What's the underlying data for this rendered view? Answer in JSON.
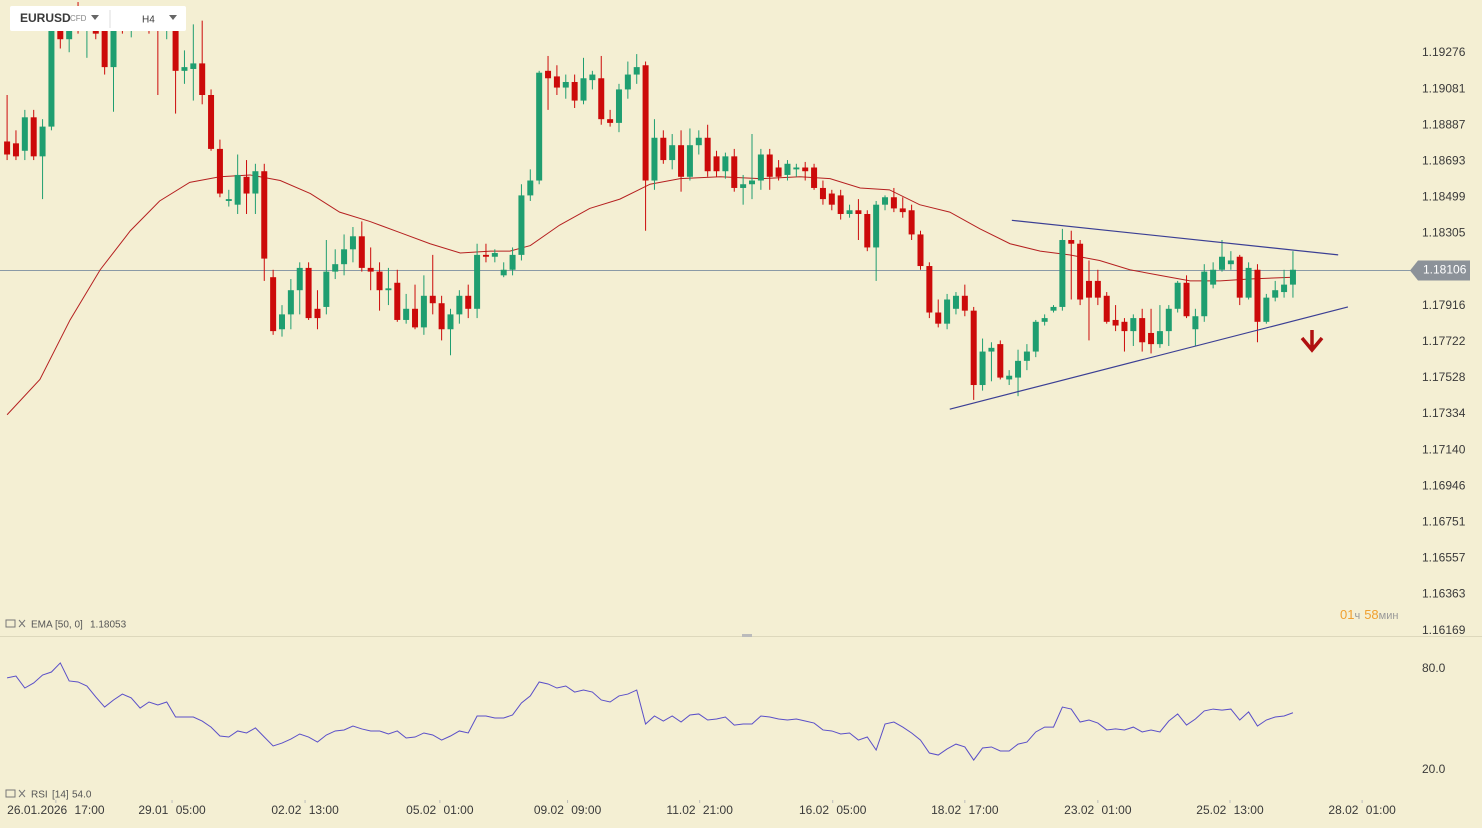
{
  "header": {
    "symbol": "EURUSD",
    "type": "CFD",
    "timeframe": "H4"
  },
  "chart_data": [
    {
      "type": "candlestick",
      "xlim": [
        -0.8,
        158.2
      ],
      "ylim": [
        1.1614,
        1.19561
      ],
      "yticks": [
        1.19276,
        1.19081,
        1.18887,
        1.18693,
        1.18499,
        1.18305,
        1.17916,
        1.17722,
        1.17528,
        1.17334,
        {
          "value": 1.1714,
          "label": "1.17140"
        },
        1.16946,
        1.16751,
        1.16557,
        1.16363,
        1.16169
      ],
      "xticks": [
        {
          "value": 5.5,
          "label": "26.01.2026 17:00"
        },
        {
          "value": 18.6,
          "label": "29.01 05:00"
        },
        {
          "value": 33.6,
          "label": "02.02 13:00"
        },
        {
          "value": 48.8,
          "label": "05.02 01:00"
        },
        {
          "value": 63.2,
          "label": "09.02 09:00"
        },
        {
          "value": 78.1,
          "label": "11.02 21:00"
        },
        {
          "value": 93.1,
          "label": "16.02 05:00"
        },
        {
          "value": 108,
          "label": "18.02 17:00"
        },
        {
          "value": 123,
          "label": "23.02 01:00"
        },
        {
          "value": 137.9,
          "label": "25.02 13:00"
        },
        {
          "value": 152.8,
          "label": "28.02 01:00"
        }
      ],
      "up_color": "#1f9e70",
      "down_color": "#cc0a0a",
      "ohlc": [
        [
          1.188,
          1.1905,
          1.187,
          1.1873
        ],
        [
          1.1879,
          1.1886,
          1.187,
          1.1872
        ],
        [
          1.1875,
          1.1897,
          1.187,
          1.1893
        ],
        [
          1.1893,
          1.1897,
          1.187,
          1.1872
        ],
        [
          1.1872,
          1.1892,
          1.1849,
          1.1888
        ],
        [
          1.1888,
          1.1948,
          1.1886,
          1.1945
        ],
        [
          1.1945,
          1.1952,
          1.193,
          1.1935
        ],
        [
          1.1935,
          1.195,
          1.1928,
          1.1946
        ],
        [
          1.1946,
          1.1955,
          1.1938,
          1.194
        ],
        [
          1.194,
          1.1948,
          1.1925,
          1.1944
        ],
        [
          1.1944,
          1.195,
          1.1935,
          1.1938
        ],
        [
          1.1943,
          1.1948,
          1.1916,
          1.192
        ],
        [
          1.192,
          1.1948,
          1.1896,
          1.1945
        ],
        [
          1.1945,
          1.195,
          1.1938,
          1.1942
        ],
        [
          1.1942,
          1.1952,
          1.1936,
          1.1947
        ],
        [
          1.1947,
          1.195,
          1.194,
          1.1943
        ],
        [
          1.1943,
          1.1948,
          1.1938,
          1.1941
        ],
        [
          1.1941,
          1.195,
          1.1905,
          1.194
        ],
        [
          1.194,
          1.1952,
          1.1935,
          1.1946
        ],
        [
          1.1943,
          1.1947,
          1.1895,
          1.1918
        ],
        [
          1.1918,
          1.1929,
          1.1911,
          1.192
        ],
        [
          1.1919,
          1.1943,
          1.1902,
          1.1922
        ],
        [
          1.1922,
          1.1945,
          1.19,
          1.1905
        ],
        [
          1.1905,
          1.1908,
          1.1875,
          1.1876
        ],
        [
          1.1876,
          1.1881,
          1.185,
          1.1852
        ],
        [
          1.1848,
          1.1854,
          1.1845,
          1.1849
        ],
        [
          1.1846,
          1.1873,
          1.1841,
          1.1862
        ],
        [
          1.1861,
          1.187,
          1.1841,
          1.1852
        ],
        [
          1.1852,
          1.1868,
          1.1841,
          1.1864
        ],
        [
          1.1864,
          1.1868,
          1.1805,
          1.1817
        ],
        [
          1.1807,
          1.1811,
          1.1776,
          1.1778
        ],
        [
          1.1779,
          1.1792,
          1.1775,
          1.1787
        ],
        [
          1.1787,
          1.1806,
          1.1779,
          1.18
        ],
        [
          1.18,
          1.1815,
          1.1787,
          1.1812
        ],
        [
          1.1812,
          1.1815,
          1.1784,
          1.1785
        ],
        [
          1.179,
          1.18,
          1.1779,
          1.1785
        ],
        [
          1.1791,
          1.1827,
          1.1787,
          1.181
        ],
        [
          1.181,
          1.1822,
          1.1806,
          1.1814
        ],
        [
          1.1814,
          1.183,
          1.1808,
          1.1822
        ],
        [
          1.1822,
          1.1834,
          1.1815,
          1.1829
        ],
        [
          1.1829,
          1.1837,
          1.181,
          1.1812
        ],
        [
          1.1812,
          1.1823,
          1.18,
          1.181
        ],
        [
          1.181,
          1.1815,
          1.1789,
          1.18
        ],
        [
          1.18,
          1.1812,
          1.1792,
          1.1801
        ],
        [
          1.1804,
          1.1811,
          1.1783,
          1.1784
        ],
        [
          1.1784,
          1.1798,
          1.1782,
          1.179
        ],
        [
          1.179,
          1.1803,
          1.1779,
          1.178
        ],
        [
          1.178,
          1.1808,
          1.1776,
          1.1797
        ],
        [
          1.1797,
          1.1819,
          1.1787,
          1.1793
        ],
        [
          1.1793,
          1.1797,
          1.1773,
          1.1779
        ],
        [
          1.1779,
          1.179,
          1.1765,
          1.1787
        ],
        [
          1.1787,
          1.18,
          1.1782,
          1.1797
        ],
        [
          1.1797,
          1.1803,
          1.1785,
          1.179
        ],
        [
          1.179,
          1.1825,
          1.1785,
          1.1819
        ],
        [
          1.1819,
          1.1825,
          1.1815,
          1.1818
        ],
        [
          1.1818,
          1.1822,
          1.1815,
          1.182
        ],
        [
          1.1808,
          1.1815,
          1.1807,
          1.1811
        ],
        [
          1.1811,
          1.1823,
          1.1808,
          1.1819
        ],
        [
          1.1819,
          1.1857,
          1.1816,
          1.1851
        ],
        [
          1.1851,
          1.1865,
          1.1848,
          1.1859
        ],
        [
          1.1859,
          1.1918,
          1.1857,
          1.1917
        ],
        [
          1.1918,
          1.1926,
          1.1897,
          1.1914
        ],
        [
          1.1915,
          1.1921,
          1.1905,
          1.1909
        ],
        [
          1.1909,
          1.1916,
          1.1903,
          1.1912
        ],
        [
          1.1912,
          1.1916,
          1.1898,
          1.1902
        ],
        [
          1.1902,
          1.1925,
          1.19,
          1.1914
        ],
        [
          1.1913,
          1.1918,
          1.1908,
          1.1916
        ],
        [
          1.1914,
          1.1926,
          1.1889,
          1.1892
        ],
        [
          1.1892,
          1.1897,
          1.1888,
          1.189
        ],
        [
          1.189,
          1.1911,
          1.1885,
          1.1908
        ],
        [
          1.1908,
          1.1923,
          1.1903,
          1.1916
        ],
        [
          1.1916,
          1.1927,
          1.1911,
          1.192
        ],
        [
          1.1921,
          1.1923,
          1.1832,
          1.1859
        ],
        [
          1.1859,
          1.1892,
          1.1854,
          1.1882
        ],
        [
          1.1882,
          1.1886,
          1.1868,
          1.187
        ],
        [
          1.187,
          1.1884,
          1.1865,
          1.1878
        ],
        [
          1.1878,
          1.1886,
          1.1853,
          1.1861
        ],
        [
          1.1861,
          1.1887,
          1.1859,
          1.1878
        ],
        [
          1.1878,
          1.1886,
          1.1873,
          1.1882
        ],
        [
          1.1882,
          1.1889,
          1.1861,
          1.1864
        ],
        [
          1.1872,
          1.1875,
          1.1861,
          1.1864
        ],
        [
          1.1864,
          1.1874,
          1.186,
          1.1872
        ],
        [
          1.1872,
          1.1876,
          1.1853,
          1.1855
        ],
        [
          1.1855,
          1.1862,
          1.1846,
          1.1857
        ],
        [
          1.1857,
          1.1884,
          1.1849,
          1.1859
        ],
        [
          1.1859,
          1.1876,
          1.1854,
          1.1873
        ],
        [
          1.1873,
          1.1876,
          1.1854,
          1.1861
        ],
        [
          1.1866,
          1.187,
          1.1859,
          1.1861
        ],
        [
          1.1862,
          1.187,
          1.1859,
          1.1868
        ],
        [
          1.1865,
          1.1868,
          1.1861,
          1.1866
        ],
        [
          1.1866,
          1.1869,
          1.1859,
          1.1864
        ],
        [
          1.1866,
          1.1868,
          1.1854,
          1.1855
        ],
        [
          1.1855,
          1.1859,
          1.1846,
          1.1849
        ],
        [
          1.1852,
          1.1854,
          1.1843,
          1.1846
        ],
        [
          1.1851,
          1.1854,
          1.1838,
          1.1841
        ],
        [
          1.1841,
          1.1846,
          1.1839,
          1.1843
        ],
        [
          1.1843,
          1.1849,
          1.1827,
          1.1841
        ],
        [
          1.1841,
          1.1843,
          1.1821,
          1.1823
        ],
        [
          1.1823,
          1.1848,
          1.1805,
          1.1846
        ],
        [
          1.1846,
          1.1851,
          1.1843,
          1.185
        ],
        [
          1.185,
          1.1855,
          1.1842,
          1.1844
        ],
        [
          1.1844,
          1.185,
          1.1839,
          1.1842
        ],
        [
          1.1843,
          1.1846,
          1.1827,
          1.183
        ],
        [
          1.183,
          1.1832,
          1.1811,
          1.1813
        ],
        [
          1.1813,
          1.1815,
          1.1785,
          1.1788
        ],
        [
          1.1788,
          1.1795,
          1.178,
          1.1782
        ],
        [
          1.1782,
          1.1798,
          1.1779,
          1.1795
        ],
        [
          1.179,
          1.1799,
          1.1787,
          1.1797
        ],
        [
          1.1797,
          1.1803,
          1.1786,
          1.1789
        ],
        [
          1.1789,
          1.1791,
          1.1741,
          1.1749
        ],
        [
          1.1749,
          1.1774,
          1.1746,
          1.1767
        ],
        [
          1.1767,
          1.1772,
          1.1751,
          1.1769
        ],
        [
          1.1771,
          1.1773,
          1.1752,
          1.1753
        ],
        [
          1.1752,
          1.1757,
          1.1749,
          1.1754
        ],
        [
          1.1753,
          1.1768,
          1.1743,
          1.1762
        ],
        [
          1.1762,
          1.1771,
          1.1757,
          1.1767
        ],
        [
          1.1767,
          1.1784,
          1.1764,
          1.1783
        ],
        [
          1.1783,
          1.1787,
          1.1781,
          1.1785
        ],
        [
          1.1789,
          1.1792,
          1.1788,
          1.1791
        ],
        [
          1.1791,
          1.1833,
          1.1789,
          1.1827
        ],
        [
          1.1827,
          1.1832,
          1.1795,
          1.1825
        ],
        [
          1.1825,
          1.1827,
          1.1792,
          1.1795
        ],
        [
          1.1805,
          1.1816,
          1.1773,
          1.1796
        ],
        [
          1.1805,
          1.1811,
          1.1792,
          1.1796
        ],
        [
          1.1797,
          1.1799,
          1.1782,
          1.1783
        ],
        [
          1.1784,
          1.1792,
          1.1778,
          1.1781
        ],
        [
          1.1783,
          1.1785,
          1.1767,
          1.1778
        ],
        [
          1.1778,
          1.1787,
          1.177,
          1.1785
        ],
        [
          1.1785,
          1.179,
          1.1767,
          1.1772
        ],
        [
          1.1777,
          1.179,
          1.1766,
          1.1771
        ],
        [
          1.1771,
          1.1792,
          1.1769,
          1.1778
        ],
        [
          1.1778,
          1.1792,
          1.177,
          1.179
        ],
        [
          1.179,
          1.1805,
          1.1788,
          1.1804
        ],
        [
          1.1804,
          1.1808,
          1.1785,
          1.1786
        ],
        [
          1.1779,
          1.179,
          1.177,
          1.1786
        ],
        [
          1.1786,
          1.1814,
          1.1783,
          1.181
        ],
        [
          1.1803,
          1.1815,
          1.1801,
          1.1811
        ],
        [
          1.1811,
          1.1827,
          1.181,
          1.1818
        ],
        [
          1.1814,
          1.1821,
          1.1811,
          1.1816
        ],
        [
          1.1818,
          1.1819,
          1.1792,
          1.1796
        ],
        [
          1.1796,
          1.1815,
          1.1795,
          1.1812
        ],
        [
          1.1811,
          1.1814,
          1.1772,
          1.1783
        ],
        [
          1.1783,
          1.1798,
          1.1782,
          1.1796
        ],
        [
          1.1796,
          1.1805,
          1.1794,
          1.18
        ],
        [
          1.1799,
          1.1811,
          1.1796,
          1.1803
        ],
        [
          1.1803,
          1.1821,
          1.1796,
          1.1811
        ]
      ],
      "ema": {
        "name": "EMA",
        "params": "[50, 0]",
        "value": 1.18053,
        "color": "#b52020",
        "x": [
          0,
          3.7,
          7.1,
          10.5,
          13.9,
          17.2,
          20.6,
          24,
          27.4,
          30.8,
          34.2,
          37.5,
          40.9,
          44.3,
          47.7,
          51.1,
          54.5,
          56.7,
          59,
          62.3,
          65.7,
          69.1,
          72.5,
          75.9,
          80.4,
          84.9,
          89.4,
          92.8,
          96.2,
          99.5,
          102.9,
          106.3,
          109.7,
          113.1,
          116.5,
          119.8,
          123.2,
          126.6,
          130,
          133.4,
          136.8,
          140.1,
          145
        ],
        "values": [
          1.1733,
          1.1752,
          1.1784,
          1.1811,
          1.1832,
          1.1848,
          1.1858,
          1.1861,
          1.1862,
          1.1859,
          1.1852,
          1.1842,
          1.1837,
          1.1831,
          1.1825,
          1.182,
          1.1821,
          1.1821,
          1.1824,
          1.1835,
          1.1844,
          1.1849,
          1.1857,
          1.186,
          1.1861,
          1.186,
          1.1861,
          1.186,
          1.1855,
          1.1854,
          1.1846,
          1.1842,
          1.1833,
          1.1825,
          1.1821,
          1.1819,
          1.1816,
          1.1811,
          1.1808,
          1.1805,
          1.1805,
          1.1806,
          1.1807
        ]
      },
      "trendlines": [
        {
          "x": [
            113.3,
            150.1
          ],
          "values": [
            1.18376,
            1.1819
          ]
        },
        {
          "x": [
            106.3,
            151.2
          ],
          "values": [
            1.1736,
            1.1791
          ]
        }
      ],
      "trendline_color": "#3b3f94",
      "last_price": 1.18106,
      "countdown": {
        "hours": "01",
        "hours_unit": "ч",
        "minutes": "58",
        "minutes_unit": "мин"
      }
    },
    {
      "type": "line",
      "name": "RSI",
      "params": "[14]",
      "last": {
        "value": 54,
        "label": "54.0"
      },
      "color": "#5a4fc8",
      "ylim": [
        2.2,
        99
      ],
      "yticks": [
        {
          "value": 80,
          "label": "80.0"
        },
        {
          "value": 20,
          "label": "20.0"
        }
      ],
      "values": [
        74.7,
        75.8,
        68.7,
        71.7,
        76.4,
        78.2,
        83.6,
        72.9,
        72.3,
        69.9,
        63.4,
        57.4,
        61.6,
        65.1,
        62.8,
        56.8,
        60.4,
        58.6,
        60.4,
        51.5,
        51.5,
        51.5,
        49.1,
        45.5,
        40.2,
        39.6,
        43.2,
        42.0,
        45.0,
        39.6,
        34.3,
        36.0,
        38.4,
        41.4,
        39.6,
        36.6,
        40.8,
        43.2,
        43.8,
        46.1,
        44.4,
        43.2,
        43.2,
        41.4,
        43.2,
        39.0,
        39.6,
        42.0,
        40.8,
        37.8,
        40.2,
        43.2,
        42.0,
        52.1,
        52.1,
        50.9,
        50.9,
        52.7,
        59.8,
        64.0,
        72.3,
        71.1,
        68.7,
        69.9,
        66.3,
        67.5,
        66.3,
        61.6,
        60.4,
        64.0,
        65.1,
        67.5,
        47.3,
        52.1,
        49.1,
        52.1,
        48.5,
        52.7,
        53.3,
        49.7,
        50.3,
        51.5,
        46.7,
        47.3,
        47.3,
        52.1,
        51.5,
        50.3,
        49.7,
        50.3,
        49.1,
        47.9,
        43.8,
        43.2,
        41.4,
        42.0,
        37.8,
        39.6,
        31.9,
        47.3,
        48.5,
        45.5,
        42.0,
        37.8,
        30.1,
        28.9,
        32.5,
        35.4,
        33.7,
        25.9,
        33.1,
        33.7,
        31.3,
        31.3,
        35.4,
        36.6,
        42.6,
        45.5,
        45.5,
        57.4,
        56.2,
        48.5,
        49.7,
        47.9,
        43.8,
        44.4,
        43.8,
        45.5,
        42.6,
        43.8,
        42.6,
        49.1,
        53.3,
        46.7,
        50.3,
        55.1,
        56.2,
        55.6,
        56.2,
        49.7,
        54.5,
        46.1,
        49.7,
        51.5,
        52.1,
        54.0
      ]
    }
  ]
}
